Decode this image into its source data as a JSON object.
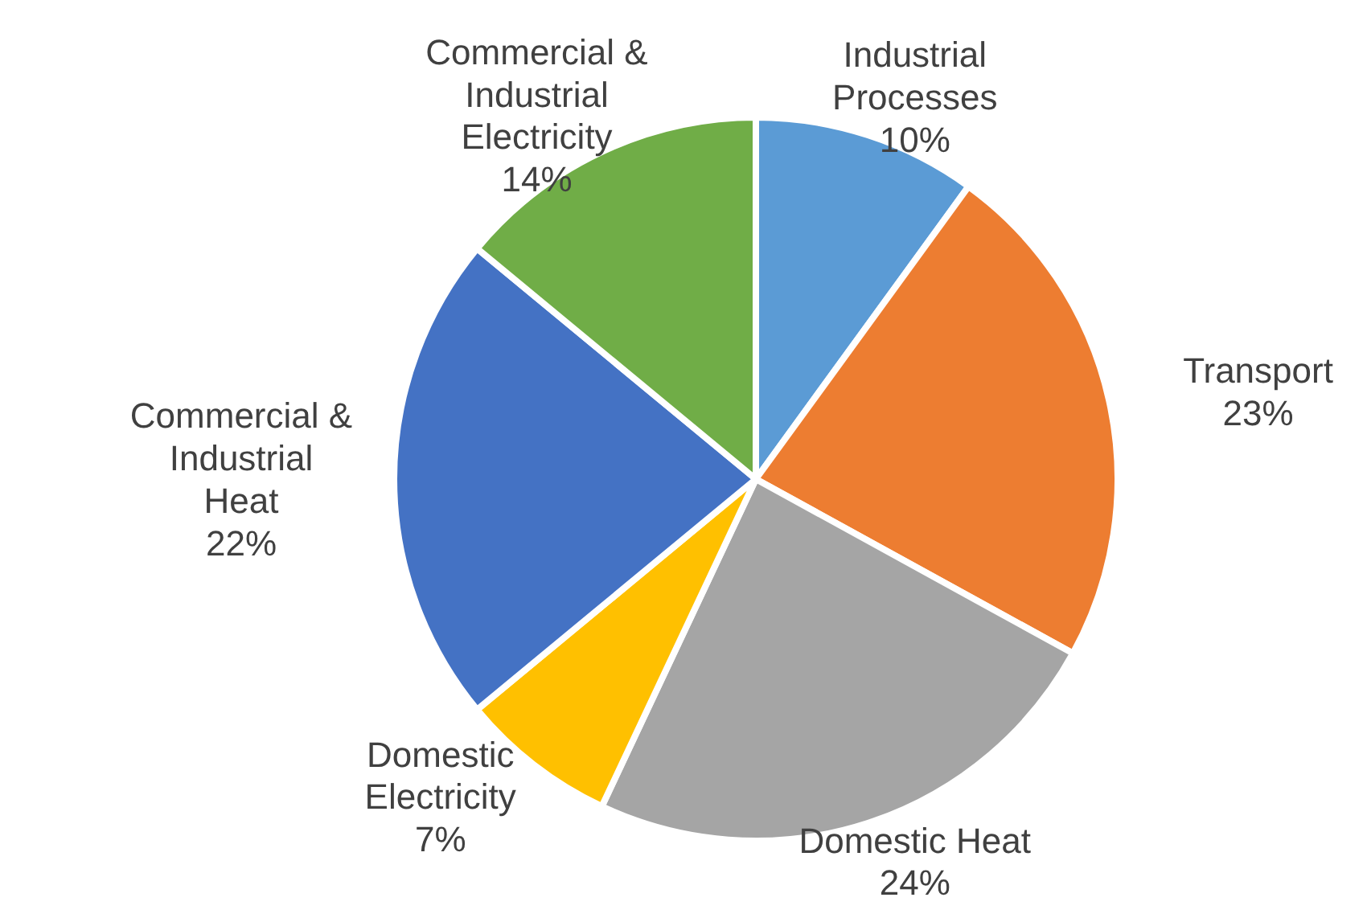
{
  "chart_data": {
    "type": "pie",
    "categories": [
      "Industrial Processes",
      "Transport",
      "Domestic Heat",
      "Domestic Electricity",
      "Commercial & Industrial Heat",
      "Commercial & Industrial Electricity"
    ],
    "values": [
      10,
      23,
      24,
      7,
      22,
      14
    ],
    "value_labels": [
      "10%",
      "23%",
      "24%",
      "7%",
      "22%",
      "14%"
    ],
    "colors": [
      "#5b9bd5",
      "#ed7d31",
      "#a5a5a5",
      "#ffc000",
      "#4472c4",
      "#70ad47"
    ]
  }
}
